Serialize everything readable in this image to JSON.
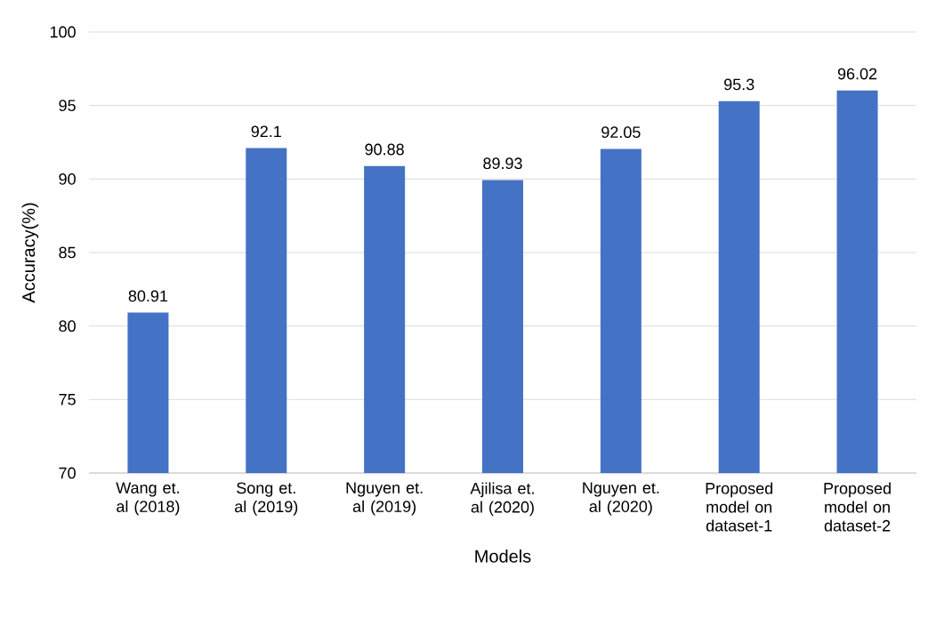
{
  "chart_data": {
    "type": "bar",
    "xlabel": "Models",
    "ylabel": "Accuracy(%)",
    "categories": [
      "Wang et. al (2018)",
      "Song et. al (2019)",
      "Nguyen et. al (2019)",
      "Ajilisa et. al (2020)",
      "Nguyen et. al (2020)",
      "Proposed model on dataset-1",
      "Proposed model on dataset-2"
    ],
    "values": [
      80.91,
      92.1,
      90.88,
      89.93,
      92.05,
      95.3,
      96.02
    ],
    "color": "#4472c4",
    "ylim": [
      70,
      100
    ],
    "yticks": [
      70,
      75,
      80,
      85,
      90,
      95,
      100
    ],
    "grid": "y",
    "data_labels": true
  }
}
